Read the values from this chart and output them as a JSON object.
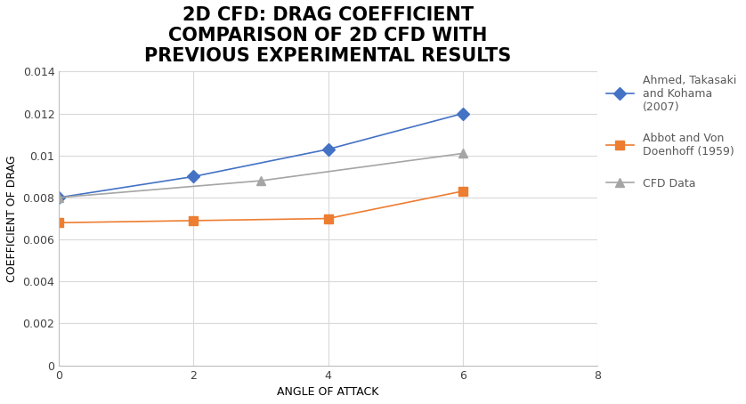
{
  "title": "2D CFD: DRAG COEFFICIENT\nCOMPARISON OF 2D CFD WITH\nPREVIOUS EXPERIMENTAL RESULTS",
  "xlabel": "ANGLE OF ATTACK",
  "ylabel": "COEFFICIENT OF DRAG",
  "xlim": [
    0,
    8
  ],
  "ylim": [
    0,
    0.014
  ],
  "xticks": [
    0,
    2,
    4,
    6,
    8
  ],
  "ytick_values": [
    0,
    0.002,
    0.004,
    0.006,
    0.008,
    0.01,
    0.012,
    0.014
  ],
  "ytick_labels": [
    "0",
    "0.002",
    "0.004",
    "0.006",
    "0.008",
    "0.01",
    "0.012",
    "0.014"
  ],
  "series": [
    {
      "label": "Ahmed, Takasaki\nand Kohama\n(2007)",
      "x": [
        0,
        2,
        4,
        6
      ],
      "y": [
        0.008,
        0.009,
        0.0103,
        0.012
      ],
      "color": "#4472C4",
      "marker": "D",
      "markersize": 7,
      "linewidth": 1.2
    },
    {
      "label": "Abbot and Von\nDoenhoff (1959)",
      "x": [
        0,
        2,
        4,
        6
      ],
      "y": [
        0.0068,
        0.0069,
        0.007,
        0.0083
      ],
      "color": "#ED7D31",
      "marker": "s",
      "markersize": 7,
      "linewidth": 1.2
    },
    {
      "label": "CFD Data",
      "x": [
        0,
        3,
        6
      ],
      "y": [
        0.008,
        0.0088,
        0.0101
      ],
      "color": "#A5A5A5",
      "marker": "^",
      "markersize": 7,
      "linewidth": 1.2
    }
  ],
  "background_color": "#FFFFFF",
  "grid_color": "#D9D9D9",
  "title_fontsize": 15,
  "axis_label_fontsize": 9,
  "tick_fontsize": 9,
  "legend_fontsize": 9
}
